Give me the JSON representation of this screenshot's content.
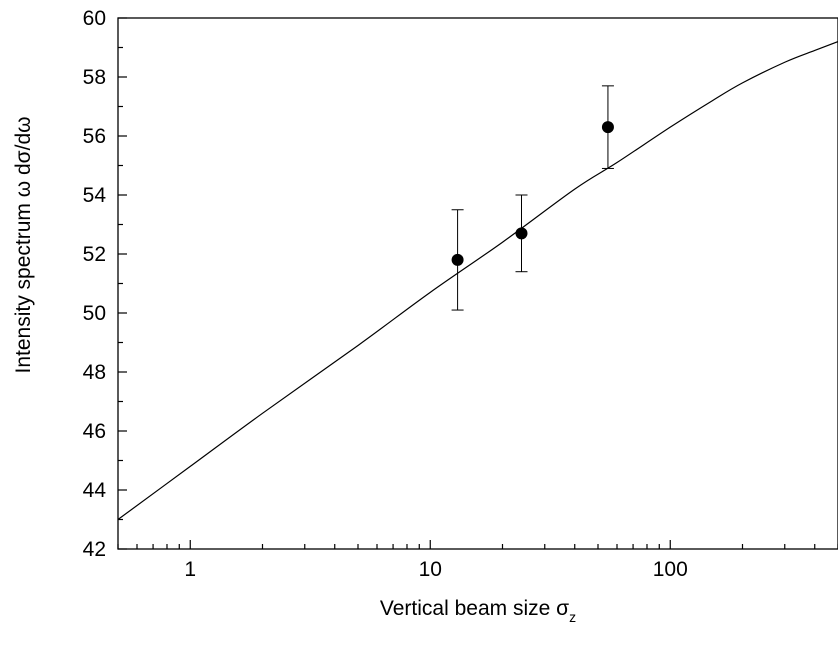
{
  "chart_data": {
    "type": "scatter",
    "x_scale": "log",
    "xlim": [
      0.5,
      500
    ],
    "ylim": [
      42,
      60
    ],
    "grid": false,
    "xlabel": "Vertical beam size σ",
    "xlabel_subscript": "z",
    "ylabel": "Intensity spectrum  ω dσ/dω",
    "x_ticks": [
      1,
      10,
      100
    ],
    "x_tick_labels": [
      "1",
      "10",
      "100"
    ],
    "y_ticks": [
      42,
      44,
      46,
      48,
      50,
      52,
      54,
      56,
      58,
      60
    ],
    "y_tick_labels": [
      "42",
      "44",
      "46",
      "48",
      "50",
      "52",
      "54",
      "56",
      "58",
      "60"
    ],
    "series": [
      {
        "kind": "points_with_error_bars",
        "x": [
          13,
          24,
          55
        ],
        "y": [
          51.8,
          52.7,
          56.3
        ],
        "err_low": [
          50.1,
          51.4,
          54.9
        ],
        "err_high": [
          53.5,
          54.0,
          57.7
        ]
      },
      {
        "kind": "curve",
        "x": [
          0.5,
          1,
          2,
          5,
          10,
          20,
          40,
          60,
          100,
          150,
          200,
          300,
          400,
          500
        ],
        "y": [
          43.0,
          44.8,
          46.6,
          48.9,
          50.7,
          52.4,
          54.2,
          55.1,
          56.3,
          57.2,
          57.8,
          58.5,
          58.9,
          59.2
        ]
      }
    ]
  }
}
